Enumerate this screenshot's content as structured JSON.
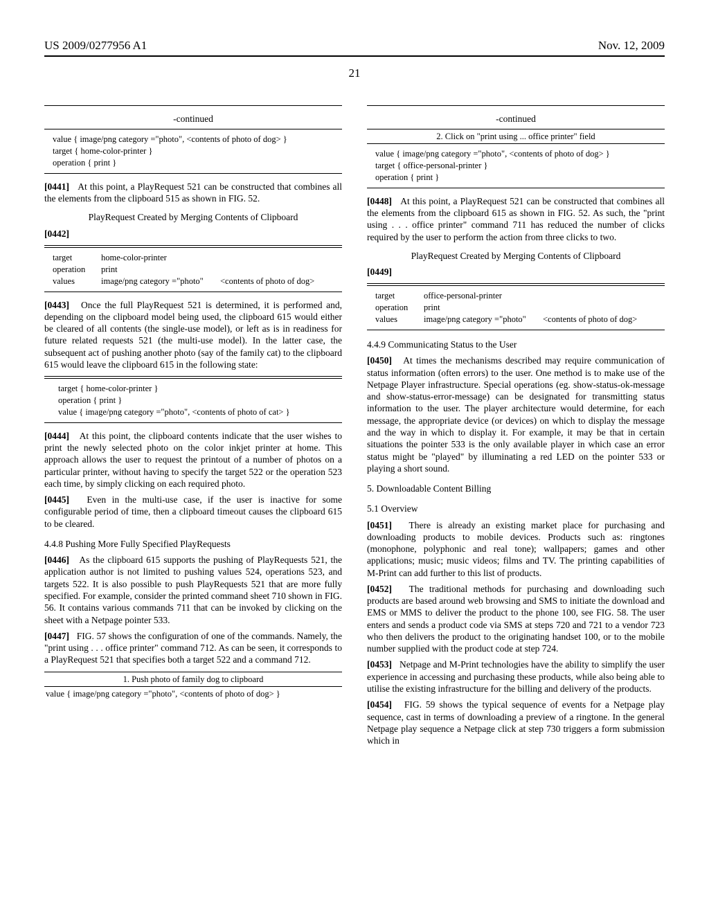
{
  "header": {
    "pub_number": "US 2009/0277956 A1",
    "date": "Nov. 12, 2009",
    "page_number": "21"
  },
  "col1": {
    "block1": {
      "continued_label": "-continued",
      "line1": "value { image/png category =\"photo\", <contents of photo of dog> }",
      "line2": "target { home-color-printer }",
      "line3": "operation { print }"
    },
    "p0441": {
      "num": "[0441]",
      "text": "At this point, a PlayRequest 521 can be constructed that combines all the elements from the clipboard 515 as shown in FIG. 52."
    },
    "title1": "PlayRequest Created by Merging Contents of Clipboard",
    "p0442": {
      "num": "[0442]"
    },
    "tbl1": {
      "r1k": "target",
      "r1v": "home-color-printer",
      "r2k": "operation",
      "r2v": "print",
      "r3k": "values",
      "r3v1": "image/png category =\"photo\"",
      "r3v2": "<contents of photo of dog>"
    },
    "p0443": {
      "num": "[0443]",
      "text": "Once the full PlayRequest 521 is determined, it is performed and, depending on the clipboard model being used, the clipboard 615 would either be cleared of all contents (the single-use model), or left as is in readiness for future related requests 521 (the multi-use model). In the latter case, the subsequent act of pushing another photo (say of the family cat) to the clipboard 615 would leave the clipboard 615 in the following state:"
    },
    "block2": {
      "line1": "target { home-color-printer }",
      "line2": "operation { print }",
      "line3": "value { image/png category =\"photo\", <contents of photo of cat> }"
    },
    "p0444": {
      "num": "[0444]",
      "text": "At this point, the clipboard contents indicate that the user wishes to print the newly selected photo on the color inkjet printer at home. This approach allows the user to request the printout of a number of photos on a particular printer, without having to specify the target 522 or the operation 523 each time, by simply clicking on each required photo."
    },
    "p0445": {
      "num": "[0445]",
      "text": "Even in the multi-use case, if the user is inactive for some configurable period of time, then a clipboard timeout causes the clipboard 615 to be cleared."
    },
    "sec448": "4.4.8 Pushing More Fully Specified PlayRequests",
    "p0446": {
      "num": "[0446]",
      "text": "As the clipboard 615 supports the pushing of PlayRequests 521, the application author is not limited to pushing values 524, operations 523, and targets 522. It is also possible to push PlayRequests 521 that are more fully specified. For example, consider the printed command sheet 710 shown in FIG. 56. It contains various commands 711 that can be invoked by clicking on the sheet with a Netpage pointer 533."
    },
    "p0447": {
      "num": "[0447]",
      "text": "FIG. 57 shows the configuration of one of the commands. Namely, the \"print using . . . office printer\" command 712. As can be seen, it corresponds to a PlayRequest 521 that specifies both a target 522 and a command 712."
    },
    "block3": {
      "step1": "1. Push photo of family dog to clipboard",
      "line1": "value { image/png category =\"photo\", <contents of photo of dog> }"
    }
  },
  "col2": {
    "block1": {
      "continued_label": "-continued",
      "step2": "2. Click on \"print using ... office printer\" field",
      "line1": "value { image/png category =\"photo\", <contents of photo of dog> }",
      "line2": "target { office-personal-printer }",
      "line3": "operation { print }"
    },
    "p0448": {
      "num": "[0448]",
      "text": "At this point, a PlayRequest 521 can be constructed that combines all the elements from the clipboard 615 as shown in FIG. 52. As such, the \"print using . . . office printer\" command 711 has reduced the number of clicks required by the user to perform the action from three clicks to two."
    },
    "title1": "PlayRequest Created by Merging Contents of Clipboard",
    "p0449": {
      "num": "[0449]"
    },
    "tbl1": {
      "r1k": "target",
      "r1v": "office-personal-printer",
      "r2k": "operation",
      "r2v": "print",
      "r3k": "values",
      "r3v1": "image/png category =\"photo\"",
      "r3v2": "<contents of photo of dog>"
    },
    "sec449": "4.4.9 Communicating Status to the User",
    "p0450": {
      "num": "[0450]",
      "text": "At times the mechanisms described may require communication of status information (often errors) to the user. One method is to make use of the Netpage Player infrastructure. Special operations (eg. show-status-ok-message and show-status-error-message) can be designated for transmitting status information to the user. The player architecture would determine, for each message, the appropriate device (or devices) on which to display the message and the way in which to display it. For example, it may be that in certain situations the pointer 533 is the only available player in which case an error status might be \"played\" by illuminating a red LED on the pointer 533 or playing a short sound."
    },
    "sec5": "5. Downloadable Content Billing",
    "sec51": "5.1 Overview",
    "p0451": {
      "num": "[0451]",
      "text": "There is already an existing market place for purchasing and downloading products to mobile devices. Products such as: ringtones (monophone, polyphonic and real tone); wallpapers; games and other applications; music; music videos; films and TV. The printing capabilities of M-Print can add further to this list of products."
    },
    "p0452": {
      "num": "[0452]",
      "text": "The traditional methods for purchasing and downloading such products are based around web browsing and SMS to initiate the download and EMS or MMS to deliver the product to the phone 100, see FIG. 58. The user enters and sends a product code via SMS at steps 720 and 721 to a vendor 723 who then delivers the product to the originating handset 100, or to the mobile number supplied with the product code at step 724."
    },
    "p0453": {
      "num": "[0453]",
      "text": "Netpage and M-Print technologies have the ability to simplify the user experience in accessing and purchasing these products, while also being able to utilise the existing infrastructure for the billing and delivery of the products."
    },
    "p0454": {
      "num": "[0454]",
      "text": "FIG. 59 shows the typical sequence of events for a Netpage play sequence, cast in terms of downloading a preview of a ringtone. In the general Netpage play sequence a Netpage click at step 730 triggers a form submission which in"
    }
  }
}
